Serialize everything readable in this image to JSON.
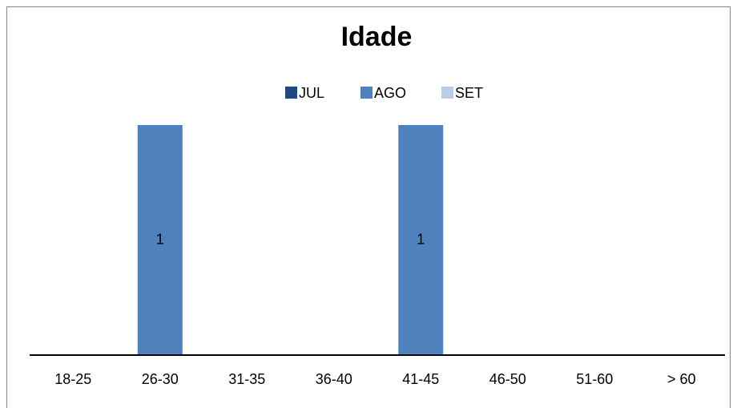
{
  "chart_data": {
    "type": "bar",
    "title": "Idade",
    "categories": [
      "18-25",
      "26-30",
      "31-35",
      "36-40",
      "41-45",
      "46-50",
      "51-60",
      "> 60"
    ],
    "series": [
      {
        "name": "JUL",
        "color": "#1f497d",
        "values": [
          null,
          null,
          null,
          null,
          null,
          null,
          null,
          null
        ]
      },
      {
        "name": "AGO",
        "color": "#4f81bd",
        "values": [
          null,
          1,
          null,
          null,
          1,
          null,
          null,
          null
        ]
      },
      {
        "name": "SET",
        "color": "#b9cde5",
        "values": [
          null,
          null,
          null,
          null,
          null,
          null,
          null,
          null
        ]
      }
    ],
    "ylim": [
      0,
      1
    ],
    "legend": "top"
  }
}
